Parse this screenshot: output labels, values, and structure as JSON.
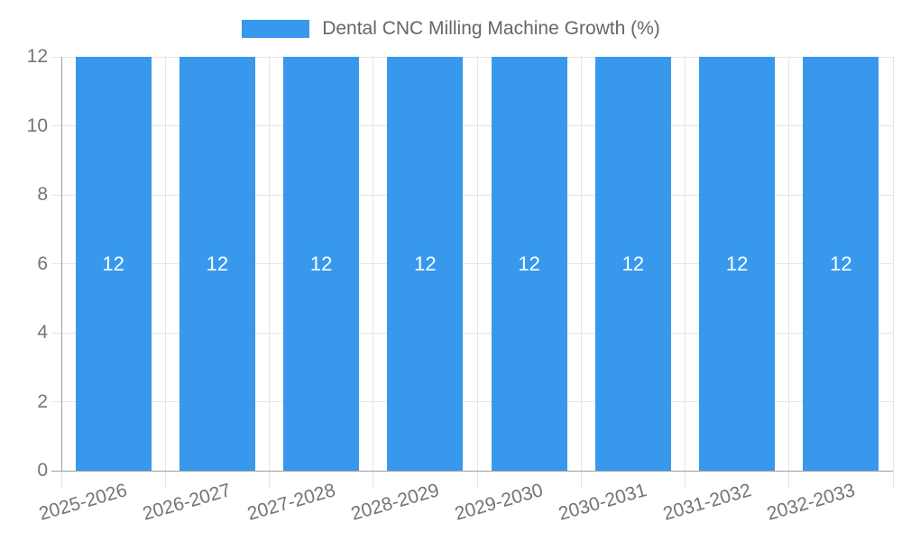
{
  "legend": {
    "label": "Dental CNC Milling Machine Growth (%)"
  },
  "chart_data": {
    "type": "bar",
    "title": "",
    "categories": [
      "2025-2026",
      "2026-2027",
      "2027-2028",
      "2028-2029",
      "2029-2030",
      "2030-2031",
      "2031-2032",
      "2032-2033"
    ],
    "series": [
      {
        "name": "Dental CNC Milling Machine Growth (%)",
        "values": [
          12,
          12,
          12,
          12,
          12,
          12,
          12,
          12
        ]
      }
    ],
    "bar_value_labels": [
      "12",
      "12",
      "12",
      "12",
      "12",
      "12",
      "12",
      "12"
    ],
    "xlabel": "",
    "ylabel": "",
    "ylim": [
      0,
      12
    ],
    "yticks": [
      0,
      2,
      4,
      6,
      8,
      10,
      12
    ],
    "grid": true,
    "legend_position": "top",
    "colors": {
      "bar": "#3899EC",
      "bar_label_text": "#FFFFFF",
      "grid_line": "#E5E5E5",
      "axis_line": "#9E9E9E",
      "tick_text": "#757575",
      "legend_text": "#666666"
    }
  }
}
